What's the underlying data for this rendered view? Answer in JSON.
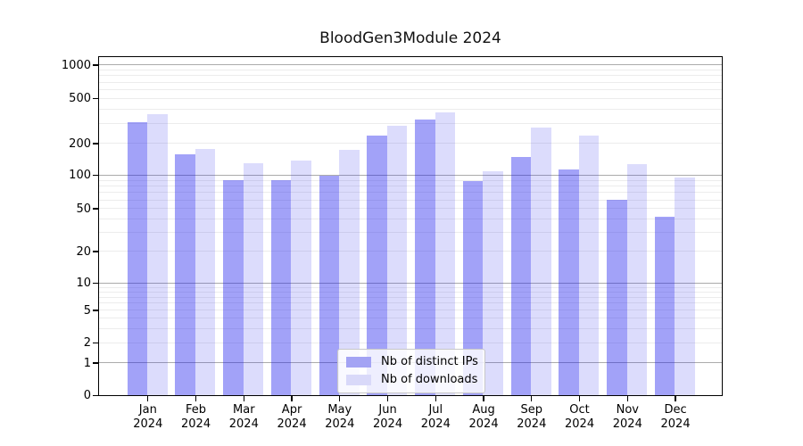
{
  "title": "BloodGen3Module 2024",
  "chart_data": {
    "type": "bar",
    "title": "BloodGen3Module 2024",
    "categories": [
      "Jan 2024",
      "Feb 2024",
      "Mar 2024",
      "Apr 2024",
      "May 2024",
      "Jun 2024",
      "Jul 2024",
      "Aug 2024",
      "Sep 2024",
      "Oct 2024",
      "Nov 2024",
      "Dec 2024"
    ],
    "series": [
      {
        "name": "Nb of distinct IPs",
        "legend_color": "#a3a3f4",
        "fill_color": "rgba(30,30,238,0.41)",
        "values": [
          310,
          160,
          92,
          92,
          100,
          238,
          330,
          89,
          150,
          114,
          61,
          43
        ]
      },
      {
        "name": "Nb of downloads",
        "legend_color": "#d9d9f9",
        "fill_color": "rgba(30,30,238,0.155)",
        "values": [
          370,
          180,
          133,
          139,
          178,
          290,
          382,
          110,
          278,
          236,
          128,
          96
        ]
      }
    ],
    "xlabel": "",
    "ylabel": "",
    "y_axis": {
      "scale": "symlog",
      "ticks": [
        0,
        1,
        2,
        5,
        10,
        20,
        50,
        100,
        200,
        500,
        1000
      ],
      "major_grid_values": [
        1,
        10,
        100,
        1000
      ],
      "range": [
        0,
        1200
      ]
    },
    "grid": true,
    "legend_position": "lower-center"
  }
}
